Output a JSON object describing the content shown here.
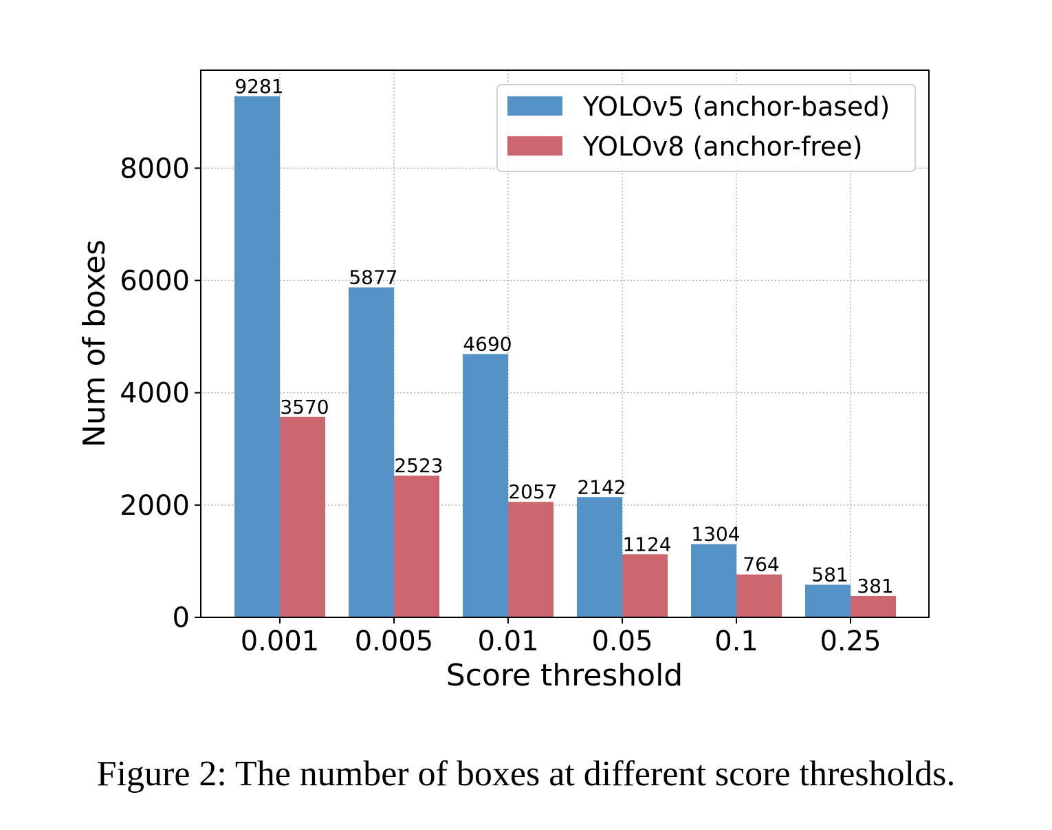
{
  "chart_data": {
    "type": "bar",
    "categories": [
      "0.001",
      "0.005",
      "0.01",
      "0.05",
      "0.1",
      "0.25"
    ],
    "series": [
      {
        "name": "YOLOv5 (anchor-based)",
        "values": [
          9281,
          5877,
          4690,
          2142,
          1304,
          581
        ],
        "color": "#5592c8"
      },
      {
        "name": "YOLOv8 (anchor-free)",
        "values": [
          3570,
          2523,
          2057,
          1124,
          764,
          381
        ],
        "color": "#cc6770"
      }
    ],
    "xlabel": "Score threshold",
    "ylabel": "Num of boxes",
    "yticks": [
      0,
      2000,
      4000,
      6000,
      8000
    ],
    "ylim": [
      0,
      9745
    ],
    "grid": true,
    "legend_position": "top-right"
  },
  "caption": "Figure 2: The number of boxes at different score thresholds."
}
